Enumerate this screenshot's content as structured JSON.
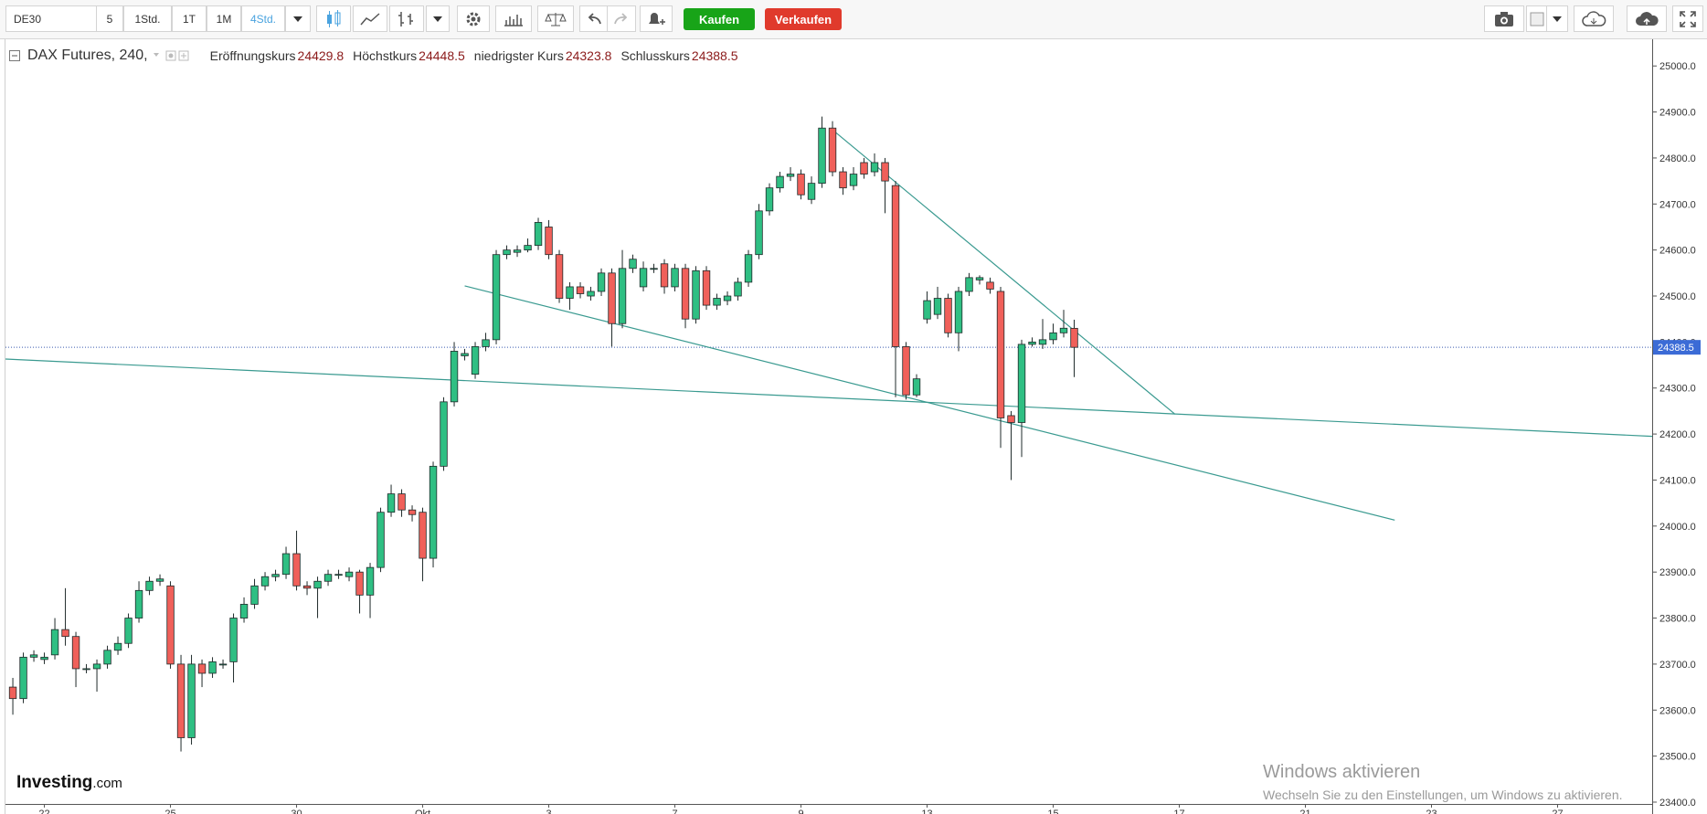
{
  "toolbar": {
    "symbol": "DE30",
    "intervals": [
      "5",
      "1Std.",
      "1T",
      "1M",
      "4Std."
    ],
    "buy": "Kaufen",
    "sell": "Verkaufen"
  },
  "chart_data": {
    "type": "candlestick",
    "title": "DAX Futures, 240,",
    "summary": [
      {
        "label": "Eröffnungskurs",
        "value": 24429.8
      },
      {
        "label": "Höchstkurs",
        "value": 24448.5
      },
      {
        "label": "niedrigster Kurs",
        "value": 24323.8
      },
      {
        "label": "Schlusskurs",
        "value": 24388.5
      }
    ],
    "up_color": "#2fbf83",
    "down_color": "#f0605a",
    "outline": "#1f2a2a",
    "open": [
      23650,
      23625,
      23715,
      23710,
      23720,
      23775,
      23760,
      23690,
      23690,
      23700,
      23730,
      23745,
      23800,
      23860,
      23880,
      23870,
      23700,
      23540,
      23700,
      23680,
      23700,
      23705,
      23800,
      23830,
      23870,
      23890,
      23895,
      23940,
      23870,
      23865,
      23880,
      23895,
      23890,
      23900,
      23850,
      23910,
      24030,
      24070,
      24035,
      24030,
      23930,
      24130,
      24270,
      24370,
      24330,
      24390,
      24405,
      24590,
      24595,
      24600,
      24610,
      24650,
      24590,
      24495,
      24520,
      24500,
      24510,
      24550,
      24440,
      24560,
      24520,
      24560,
      24570,
      24520,
      24560,
      24450,
      24555,
      24480,
      24490,
      24500,
      24530,
      24590,
      24685,
      24735,
      24760,
      24765,
      24710,
      24745,
      24865,
      24770,
      24740,
      24790,
      24770,
      24790,
      24740,
      24390,
      24285,
      24450,
      24460,
      24495,
      24420,
      24510,
      24535,
      24530,
      24510,
      24240,
      24225,
      24395,
      24395,
      24405,
      24420,
      24429.8
    ],
    "high": [
      23670,
      23725,
      23730,
      23725,
      23800,
      23865,
      23770,
      23700,
      23710,
      23740,
      23760,
      23810,
      23880,
      23890,
      23895,
      23880,
      23720,
      23720,
      23710,
      23715,
      23710,
      23810,
      23845,
      23885,
      23900,
      23905,
      23955,
      23990,
      23880,
      23890,
      23905,
      23905,
      23910,
      23905,
      23920,
      24040,
      24090,
      24080,
      24045,
      24040,
      24140,
      24280,
      24400,
      24385,
      24400,
      24420,
      24600,
      24610,
      24610,
      24625,
      24670,
      24665,
      24600,
      24530,
      24530,
      24520,
      24560,
      24560,
      24600,
      24590,
      24575,
      24570,
      24580,
      24570,
      24570,
      24565,
      24565,
      24505,
      24510,
      24540,
      24600,
      24700,
      24745,
      24770,
      24780,
      24775,
      24760,
      24890,
      24880,
      24780,
      24780,
      24800,
      24810,
      24800,
      24750,
      24400,
      24330,
      24510,
      24520,
      24505,
      24520,
      24550,
      24545,
      24540,
      24520,
      24250,
      24405,
      24410,
      24450,
      24440,
      24470,
      24448.5
    ],
    "low": [
      23590,
      23615,
      23705,
      23700,
      23710,
      23740,
      23650,
      23680,
      23640,
      23690,
      23720,
      23735,
      23790,
      23850,
      23870,
      23690,
      23510,
      23525,
      23650,
      23670,
      23690,
      23660,
      23790,
      23820,
      23860,
      23880,
      23885,
      23860,
      23850,
      23800,
      23870,
      23885,
      23880,
      23810,
      23800,
      23900,
      24020,
      24020,
      24010,
      23880,
      23910,
      24120,
      24260,
      24360,
      24320,
      24380,
      24395,
      24580,
      24585,
      24595,
      24600,
      24580,
      24485,
      24470,
      24495,
      24490,
      24500,
      24390,
      24430,
      24550,
      24510,
      24550,
      24505,
      24510,
      24430,
      24440,
      24470,
      24470,
      24480,
      24490,
      24520,
      24580,
      24675,
      24725,
      24750,
      24710,
      24700,
      24735,
      24760,
      24720,
      24730,
      24755,
      24760,
      24680,
      24280,
      24275,
      24280,
      24440,
      24450,
      24410,
      24380,
      24500,
      24525,
      24505,
      24170,
      24100,
      24150,
      24390,
      24385,
      24395,
      24410,
      24323.8
    ],
    "close": [
      23625,
      23715,
      23720,
      23715,
      23775,
      23760,
      23690,
      23690,
      23700,
      23730,
      23745,
      23800,
      23860,
      23880,
      23885,
      23700,
      23540,
      23700,
      23680,
      23705,
      23700,
      23800,
      23830,
      23870,
      23890,
      23895,
      23940,
      23870,
      23865,
      23880,
      23895,
      23895,
      23900,
      23850,
      23910,
      24030,
      24070,
      24035,
      24025,
      23930,
      24130,
      24270,
      24380,
      24375,
      24390,
      24405,
      24590,
      24600,
      24600,
      24610,
      24660,
      24590,
      24495,
      24520,
      24505,
      24510,
      24550,
      24440,
      24560,
      24580,
      24560,
      24560,
      24520,
      24560,
      24450,
      24555,
      24480,
      24495,
      24500,
      24530,
      24590,
      24685,
      24735,
      24760,
      24765,
      24720,
      24745,
      24865,
      24770,
      24735,
      24765,
      24765,
      24790,
      24750,
      24390,
      24285,
      24320,
      24490,
      24495,
      24420,
      24510,
      24540,
      24540,
      24515,
      24235,
      24225,
      24395,
      24400,
      24405,
      24420,
      24430,
      24388.5
    ],
    "last_price": 24388.5,
    "trendlines": [
      {
        "x": [
          -0.7,
          156
        ],
        "y": [
          24363,
          24195
        ]
      },
      {
        "x": [
          43,
          131.5
        ],
        "y": [
          24522,
          24013
        ]
      },
      {
        "x": [
          77.8,
          110.6
        ],
        "y": [
          24865,
          24243
        ]
      }
    ],
    "xlim": [
      -0.7,
      156
    ],
    "ylim": [
      23396,
      25058
    ],
    "xticks": [
      {
        "value": 3,
        "label": "22"
      },
      {
        "value": 15,
        "label": "25"
      },
      {
        "value": 27,
        "label": "30"
      },
      {
        "value": 39,
        "label": "Okt"
      },
      {
        "value": 51,
        "label": "3"
      },
      {
        "value": 63,
        "label": "7"
      },
      {
        "value": 75,
        "label": "9"
      },
      {
        "value": 87,
        "label": "13"
      },
      {
        "value": 99,
        "label": "15"
      },
      {
        "value": 111,
        "label": "17"
      },
      {
        "value": 123,
        "label": "21"
      },
      {
        "value": 135,
        "label": "23"
      },
      {
        "value": 147,
        "label": "27"
      }
    ],
    "yticks": [
      {
        "value": 23400,
        "label": "23400.0"
      },
      {
        "value": 23500,
        "label": "23500.0"
      },
      {
        "value": 23600,
        "label": "23600.0"
      },
      {
        "value": 23700,
        "label": "23700.0"
      },
      {
        "value": 23800,
        "label": "23800.0"
      },
      {
        "value": 23900,
        "label": "23900.0"
      },
      {
        "value": 24000,
        "label": "24000.0"
      },
      {
        "value": 24100,
        "label": "24100.0"
      },
      {
        "value": 24200,
        "label": "24200.0"
      },
      {
        "value": 24300,
        "label": "24300.0"
      },
      {
        "value": 24400,
        "label": "24400.0"
      },
      {
        "value": 24500,
        "label": "24500.0"
      },
      {
        "value": 24600,
        "label": "24600.0"
      },
      {
        "value": 24700,
        "label": "24700.0"
      },
      {
        "value": 24800,
        "label": "24800.0"
      },
      {
        "value": 24900,
        "label": "24900.0"
      },
      {
        "value": 25000,
        "label": "25000.0"
      }
    ],
    "watermark": {
      "brand": "Investing",
      "suffix": ".com"
    }
  },
  "overlay": {
    "title": "Windows aktivieren",
    "text": "Wechseln Sie zu den Einstellungen, um Windows zu aktivieren."
  }
}
